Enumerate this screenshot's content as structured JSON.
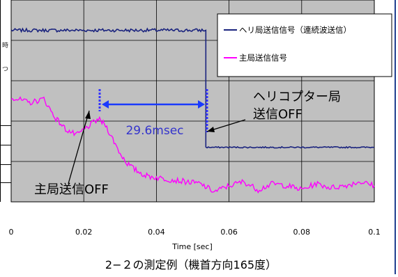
{
  "chart_data": {
    "type": "line",
    "title": "2−２の測定例（機首方向165度）",
    "xlabel": "Time [sec]",
    "ylabel": "",
    "xlim": [
      0,
      0.1
    ],
    "x_ticks": [
      "0",
      "0.02",
      "0.04",
      "0.06",
      "0.08",
      "0.1"
    ],
    "y_ticks": [],
    "grid": true,
    "legend_position": "top-right",
    "series": [
      {
        "name": "ヘリ局送信信号（連続波送信）",
        "color": "#1a237e",
        "x": [
          0,
          0.0536,
          0.0536,
          0.1
        ],
        "y": [
          0.85,
          0.85,
          0.27,
          0.27
        ]
      },
      {
        "name": "主局送信信号",
        "color": "#ff00ff",
        "x": [
          0,
          0.005,
          0.009,
          0.012,
          0.015,
          0.018,
          0.021,
          0.024,
          0.026,
          0.028,
          0.03,
          0.032,
          0.034,
          0.037,
          0.04,
          0.044,
          0.048,
          0.052,
          0.056,
          0.06,
          0.064,
          0.068,
          0.072,
          0.076,
          0.08,
          0.084,
          0.088,
          0.092,
          0.096,
          0.1
        ],
        "y": [
          0.52,
          0.49,
          0.51,
          0.42,
          0.36,
          0.33,
          0.37,
          0.41,
          0.38,
          0.31,
          0.24,
          0.19,
          0.16,
          0.13,
          0.12,
          0.11,
          0.1,
          0.09,
          0.05,
          0.08,
          0.1,
          0.06,
          0.09,
          0.08,
          0.06,
          0.09,
          0.07,
          0.08,
          0.1,
          0.08
        ]
      }
    ],
    "annotations": [
      {
        "text": "29.6msec",
        "color": "#3333cc"
      },
      {
        "text": "ヘリコプター局",
        "color": "#000000"
      },
      {
        "text": "送信OFF",
        "color": "#000000"
      },
      {
        "text": "主局送信OFF",
        "color": "#000000"
      }
    ]
  },
  "left_glyphs": [
    "時",
    "つ"
  ]
}
